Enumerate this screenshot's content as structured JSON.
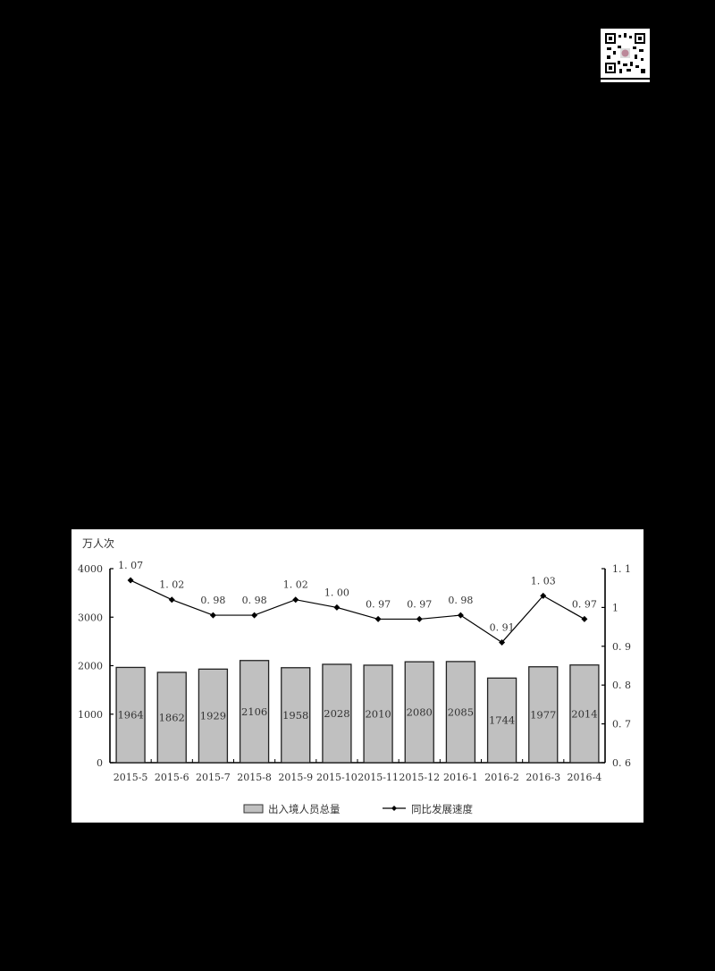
{
  "qr_code": {
    "label": "qr-code"
  },
  "chart_data": {
    "type": "bar+line",
    "title": "",
    "unit_label": "万人次",
    "categories": [
      "2015-5",
      "2015-6",
      "2015-7",
      "2015-8",
      "2015-9",
      "2015-10",
      "2015-11",
      "2015-12",
      "2016-1",
      "2016-2",
      "2016-3",
      "2016-4"
    ],
    "series": [
      {
        "name": "出入境人员总量",
        "type": "bar",
        "axis": "left",
        "color": "#c0c0c0",
        "values": [
          1964,
          1862,
          1929,
          2106,
          1958,
          2028,
          2010,
          2080,
          2085,
          1744,
          1977,
          2014
        ]
      },
      {
        "name": "同比发展速度",
        "type": "line",
        "axis": "right",
        "color": "#000000",
        "values": [
          1.07,
          1.02,
          0.98,
          0.98,
          1.02,
          1.0,
          0.97,
          0.97,
          0.98,
          0.91,
          1.03,
          0.97
        ],
        "labels": [
          "1.07",
          "1.02",
          "0.98",
          "0.98",
          "1.02",
          "1.00",
          "0.97",
          "0.97",
          "0.98",
          "0.91",
          "1.03",
          "0.97"
        ]
      }
    ],
    "left_axis": {
      "ylim": [
        0,
        4000
      ],
      "ticks": [
        "0",
        "1000",
        "2000",
        "3000",
        "4000"
      ]
    },
    "right_axis": {
      "ylim": [
        0.6,
        1.1
      ],
      "ticks": [
        "0.6",
        "0.7",
        "0.8",
        "0.9",
        "1",
        "1.1"
      ]
    },
    "grid": false,
    "legend_position": "bottom",
    "legend": [
      "出入境人员总量",
      "同比发展速度"
    ]
  }
}
